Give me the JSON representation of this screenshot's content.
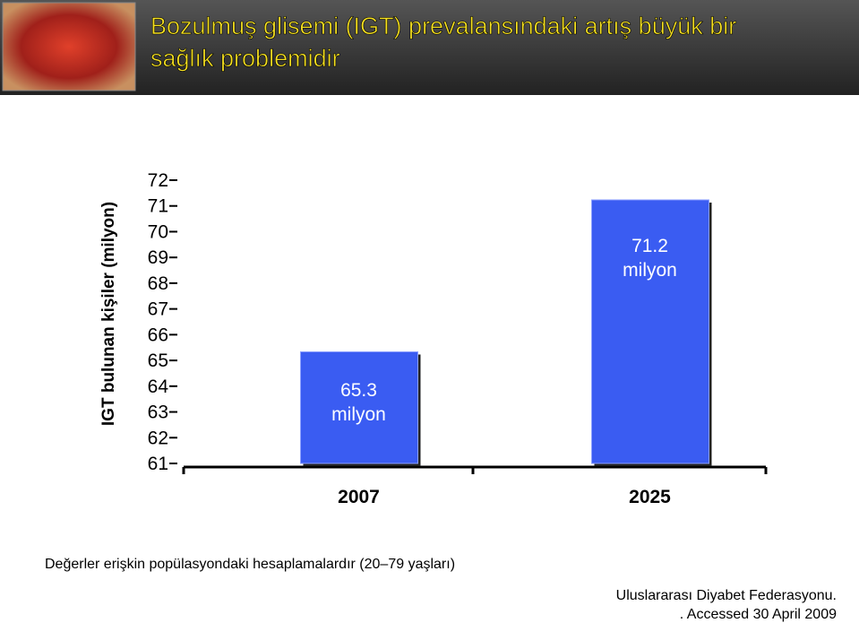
{
  "header": {
    "title": "Bozulmuş glisemi (IGT) prevalansındaki artış büyük bir sağlık problemidir"
  },
  "chart_data": {
    "type": "bar",
    "y_label": "IGT bulunan kişiler (milyon)",
    "categories": [
      "2007",
      "2025"
    ],
    "values": [
      65.3,
      71.2
    ],
    "value_labels": [
      "65.3 milyon",
      "71.2 milyon"
    ],
    "color": "#3a5cf2",
    "ylim": [
      61,
      72
    ],
    "yticks": [
      61,
      62,
      63,
      64,
      65,
      66,
      67,
      68,
      69,
      70,
      71,
      72
    ]
  },
  "footnote": "Değerler erişkin popülasyondaki hesaplamalardır (20–79 yaşları)",
  "source": [
    "Uluslararası Diyabet Federasyonu.",
    ". Accessed 30 April 2009"
  ]
}
